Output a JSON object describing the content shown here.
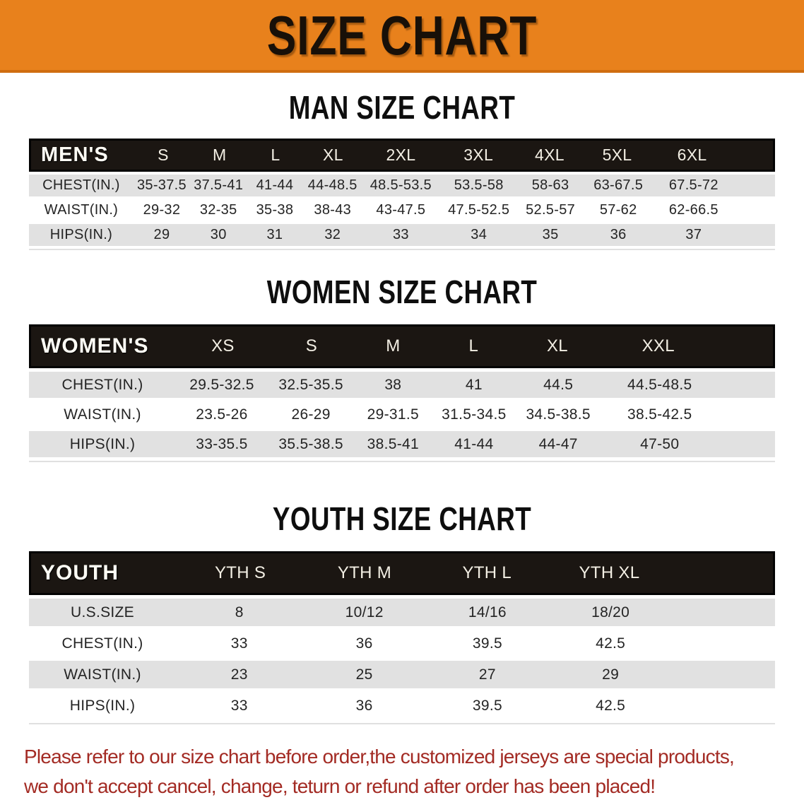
{
  "banner": {
    "title": "SIZE CHART",
    "bg_color": "#e8811c",
    "text_color": "#181008"
  },
  "sections": [
    {
      "heading": "MAN SIZE CHART",
      "table": {
        "header_label": "MEN'S",
        "columns": [
          "S",
          "M",
          "L",
          "XL",
          "2XL",
          "3XL",
          "4XL",
          "5XL",
          "6XL"
        ],
        "rows": [
          {
            "label": "CHEST(IN.)",
            "values": [
              "35-37.5",
              "37.5-41",
              "41-44",
              "44-48.5",
              "48.5-53.5",
              "53.5-58",
              "58-63",
              "63-67.5",
              "67.5-72"
            ]
          },
          {
            "label": "WAIST(IN.)",
            "values": [
              "29-32",
              "32-35",
              "35-38",
              "38-43",
              "43-47.5",
              "47.5-52.5",
              "52.5-57",
              "57-62",
              "62-66.5"
            ]
          },
          {
            "label": "HIPS(IN.)",
            "values": [
              "29",
              "30",
              "31",
              "32",
              "33",
              "34",
              "35",
              "36",
              "37"
            ]
          }
        ]
      }
    },
    {
      "heading": "WOMEN SIZE CHART",
      "table": {
        "header_label": "WOMEN'S",
        "columns": [
          "XS",
          "S",
          "M",
          "L",
          "XL",
          "XXL"
        ],
        "rows": [
          {
            "label": "CHEST(IN.)",
            "values": [
              "29.5-32.5",
              "32.5-35.5",
              "38",
              "41",
              "44.5",
              "44.5-48.5"
            ]
          },
          {
            "label": "WAIST(IN.)",
            "values": [
              "23.5-26",
              "26-29",
              "29-31.5",
              "31.5-34.5",
              "34.5-38.5",
              "38.5-42.5"
            ]
          },
          {
            "label": "HIPS(IN.)",
            "values": [
              "33-35.5",
              "35.5-38.5",
              "38.5-41",
              "41-44",
              "44-47",
              "47-50"
            ]
          }
        ]
      }
    },
    {
      "heading": "YOUTH SIZE CHART",
      "table": {
        "header_label": "YOUTH",
        "columns": [
          "YTH S",
          "YTH M",
          "YTH L",
          "YTH XL"
        ],
        "rows": [
          {
            "label": "U.S.SIZE",
            "values": [
              "8",
              "10/12",
              "14/16",
              "18/20"
            ]
          },
          {
            "label": "CHEST(IN.)",
            "values": [
              "33",
              "36",
              "39.5",
              "42.5"
            ]
          },
          {
            "label": "WAIST(IN.)",
            "values": [
              "23",
              "25",
              "27",
              "29"
            ]
          },
          {
            "label": "HIPS(IN.)",
            "values": [
              "33",
              "36",
              "39.5",
              "42.5"
            ]
          }
        ]
      }
    }
  ],
  "disclaimer": {
    "line1": "Please refer to our size chart before order,the customized jerseys are special products,",
    "line2": "we don't accept cancel, change, teturn or refund after order has been placed!",
    "text_color": "#a32b24"
  }
}
